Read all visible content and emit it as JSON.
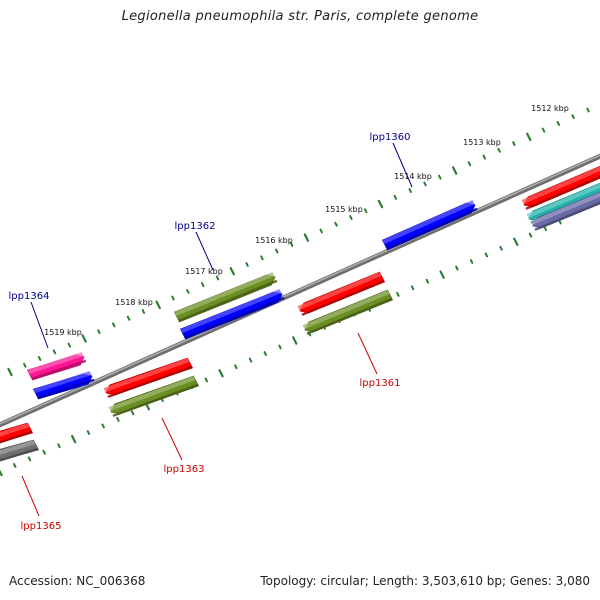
{
  "title": "Legionella pneumophila str. Paris, complete genome",
  "footer": {
    "accession": "Accession: NC_006368",
    "topology": "Topology: circular; Length: 3,503,610 bp; Genes: 3,080"
  },
  "scale": {
    "tick_labels": [
      "1512 kbp",
      "1513 kbp",
      "1514 kbp",
      "1515 kbp",
      "1516 kbp",
      "1517 kbp",
      "1518 kbp",
      "1519 kbp"
    ]
  },
  "colors": {
    "backbone": "#888888",
    "tick": "#2e7d32",
    "gene_blue": "#0000ff",
    "gene_red": "#ff0000",
    "gene_olive": "#6b8e23",
    "gene_pink": "#ff1493",
    "gene_gray": "#707070",
    "gene_cyan": "#20b2aa",
    "gene_slate": "#6a6aa8",
    "label_forward": "#00008b",
    "label_reverse": "#cc0000"
  },
  "genes": {
    "forward": [
      {
        "id": "g1364",
        "label": "lpp1364",
        "color": "gene_pink"
      },
      {
        "id": "g1364b",
        "label": "",
        "color": "gene_blue"
      },
      {
        "id": "g1362",
        "label": "lpp1362",
        "color": "gene_olive"
      },
      {
        "id": "g1362b",
        "label": "",
        "color": "gene_blue"
      },
      {
        "id": "g1360",
        "label": "lpp1360",
        "color": "gene_blue"
      }
    ],
    "reverse": [
      {
        "id": "g1365",
        "label": "lpp1365",
        "color": "gene_red"
      },
      {
        "id": "g1365b",
        "label": "",
        "color": "gene_gray"
      },
      {
        "id": "g1363",
        "label": "lpp1363",
        "color": "gene_red"
      },
      {
        "id": "g1363b",
        "label": "",
        "color": "gene_olive"
      },
      {
        "id": "g1361",
        "label": "lpp1361",
        "color": "gene_red"
      },
      {
        "id": "g1361b",
        "label": "",
        "color": "gene_olive"
      }
    ],
    "edge": [
      {
        "id": "gEdge1",
        "label": "",
        "color": "gene_red"
      },
      {
        "id": "gEdge2",
        "label": "",
        "color": "gene_cyan"
      },
      {
        "id": "gEdge3",
        "label": "",
        "color": "gene_slate"
      }
    ]
  }
}
